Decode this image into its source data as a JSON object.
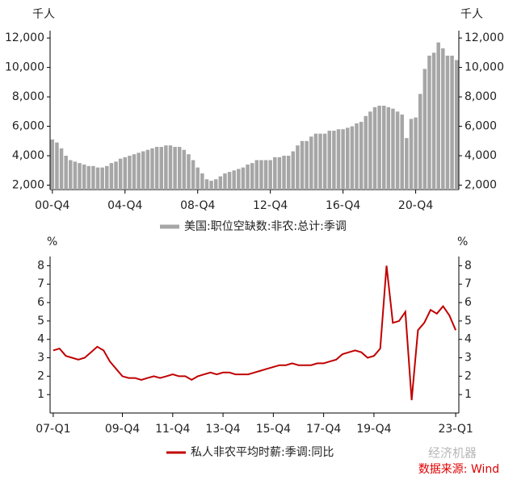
{
  "chart_data": [
    {
      "type": "bar",
      "y_label": "千人",
      "y2_label": "千人",
      "categories": [
        "00-Q4",
        null,
        null,
        null,
        null,
        null,
        null,
        null,
        null,
        null,
        null,
        null,
        null,
        null,
        null,
        null,
        "04-Q4",
        null,
        null,
        null,
        null,
        null,
        null,
        null,
        null,
        null,
        null,
        null,
        null,
        null,
        null,
        null,
        "08-Q4",
        null,
        null,
        null,
        null,
        null,
        null,
        null,
        null,
        null,
        null,
        null,
        null,
        null,
        null,
        null,
        "12-Q4",
        null,
        null,
        null,
        null,
        null,
        null,
        null,
        null,
        null,
        null,
        null,
        null,
        null,
        null,
        null,
        "16-Q4",
        null,
        null,
        null,
        null,
        null,
        null,
        null,
        null,
        null,
        null,
        null,
        null,
        null,
        null,
        null,
        "20-Q4",
        null,
        null,
        null,
        null,
        null,
        null,
        null,
        null,
        null
      ],
      "series": [
        {
          "name": "美国:职位空缺数:非农:总计:季调",
          "color": "#a6a6a6",
          "values": [
            5100,
            4900,
            4500,
            4000,
            3700,
            3600,
            3500,
            3400,
            3300,
            3300,
            3200,
            3200,
            3300,
            3500,
            3600,
            3800,
            3900,
            4000,
            4100,
            4200,
            4300,
            4400,
            4500,
            4600,
            4600,
            4700,
            4700,
            4600,
            4600,
            4400,
            4100,
            3700,
            3200,
            2800,
            2400,
            2300,
            2400,
            2600,
            2800,
            2900,
            3000,
            3100,
            3200,
            3400,
            3500,
            3700,
            3700,
            3700,
            3700,
            3900,
            3900,
            4000,
            4000,
            4300,
            4700,
            5000,
            5000,
            5300,
            5500,
            5500,
            5500,
            5700,
            5700,
            5800,
            5800,
            5900,
            6000,
            6200,
            6300,
            6700,
            7000,
            7300,
            7400,
            7400,
            7300,
            7200,
            7000,
            6800,
            5200,
            6500,
            6600,
            8200,
            9900,
            10800,
            11000,
            11700,
            11300,
            10800,
            10800,
            10500
          ]
        }
      ],
      "ylim": [
        1700,
        12500
      ],
      "yticks": [
        {
          "value": 2000,
          "label": "2,000"
        },
        {
          "value": 4000,
          "label": "4,000"
        },
        {
          "value": 6000,
          "label": "6,000"
        },
        {
          "value": 8000,
          "label": "8,000"
        },
        {
          "value": 10000,
          "label": "10,000"
        },
        {
          "value": 12000,
          "label": "12,000"
        }
      ],
      "y2lim": [
        1700,
        12500
      ],
      "y2ticks": [
        {
          "value": 2000,
          "label": "2,000"
        },
        {
          "value": 4000,
          "label": "4,000"
        },
        {
          "value": 6000,
          "label": "6,000"
        },
        {
          "value": 8000,
          "label": "8,000"
        },
        {
          "value": 10000,
          "label": "10,000"
        },
        {
          "value": 12000,
          "label": "12,000"
        }
      ]
    },
    {
      "type": "line",
      "y_label": "%",
      "y2_label": "%",
      "categories": [
        "07-Q1",
        null,
        null,
        null,
        null,
        null,
        null,
        null,
        null,
        null,
        null,
        "09-Q4",
        null,
        null,
        null,
        null,
        null,
        null,
        null,
        "11-Q4",
        null,
        null,
        null,
        null,
        null,
        null,
        null,
        "13-Q4",
        null,
        null,
        null,
        null,
        null,
        null,
        null,
        "15-Q4",
        null,
        null,
        null,
        null,
        null,
        null,
        null,
        "17-Q4",
        null,
        null,
        null,
        null,
        null,
        null,
        null,
        "19-Q4",
        null,
        null,
        null,
        null,
        null,
        null,
        null,
        null,
        null,
        null,
        null,
        null,
        "23-Q1"
      ],
      "series": [
        {
          "name": "私人非农平均时薪:季调:同比",
          "color": "#c00000",
          "values": [
            3.4,
            3.5,
            3.1,
            3.0,
            2.9,
            3.0,
            3.3,
            3.6,
            3.4,
            2.8,
            2.4,
            2.0,
            1.9,
            1.9,
            1.8,
            1.9,
            2.0,
            1.9,
            2.0,
            2.1,
            2.0,
            2.0,
            1.8,
            2.0,
            2.1,
            2.2,
            2.1,
            2.2,
            2.2,
            2.1,
            2.1,
            2.1,
            2.2,
            2.3,
            2.4,
            2.5,
            2.6,
            2.6,
            2.7,
            2.6,
            2.6,
            2.6,
            2.7,
            2.7,
            2.8,
            2.9,
            3.2,
            3.3,
            3.4,
            3.3,
            3.0,
            3.1,
            3.5,
            8.0,
            4.9,
            5.0,
            5.5,
            0.7,
            4.5,
            4.9,
            5.6,
            5.4,
            5.8,
            5.3,
            4.5
          ]
        }
      ],
      "ylim": [
        0,
        8.5
      ],
      "yticks": [
        1,
        2,
        3,
        4,
        5,
        6,
        7,
        8
      ],
      "y2lim": [
        0,
        8.5
      ],
      "y2ticks": [
        1,
        2,
        3,
        4,
        5,
        6,
        7,
        8
      ]
    }
  ],
  "watermark": "经济机器",
  "source": "数据来源: Wind"
}
